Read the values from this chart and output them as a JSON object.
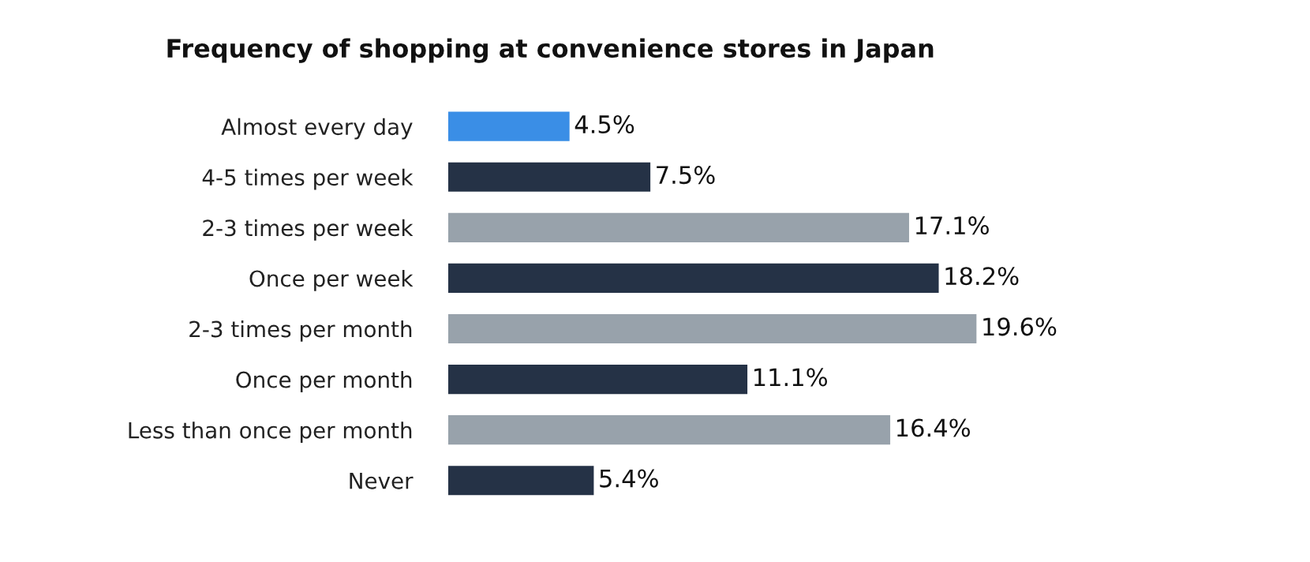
{
  "chart_data": {
    "type": "bar",
    "orientation": "horizontal",
    "title": "Frequency of shopping at convenience stores in Japan",
    "categories": [
      "Almost every day",
      "4-5 times per week",
      "2-3 times per week",
      "Once per week",
      "2-3 times per month",
      "Once per month",
      "Less than once per month",
      "Never"
    ],
    "values": [
      4.5,
      7.5,
      17.1,
      18.2,
      19.6,
      11.1,
      16.4,
      5.4
    ],
    "value_labels": [
      "4.5%",
      "7.5%",
      "17.1%",
      "18.2%",
      "19.6%",
      "11.1%",
      "16.4%",
      "5.4%"
    ],
    "colors": [
      "#3a8ee6",
      "#253246",
      "#98a2ab",
      "#253246",
      "#98a2ab",
      "#253246",
      "#98a2ab",
      "#253246"
    ],
    "grid": false,
    "legend": false
  }
}
